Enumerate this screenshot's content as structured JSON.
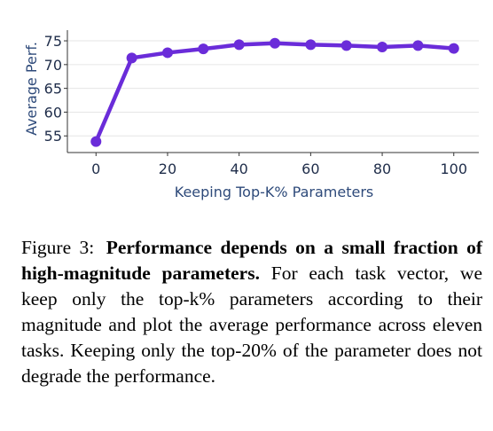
{
  "chart_data": {
    "type": "line",
    "x": [
      0,
      10,
      20,
      30,
      40,
      50,
      60,
      70,
      80,
      90,
      100
    ],
    "series": [
      {
        "values": [
          53.8,
          71.4,
          72.5,
          73.3,
          74.2,
          74.5,
          74.2,
          74.0,
          73.7,
          74.0,
          73.4
        ]
      }
    ],
    "xlabel": "Keeping Top-K% Parameters",
    "ylabel": "Average Perf.",
    "xticks": [
      0,
      20,
      40,
      60,
      80,
      100
    ],
    "yticks": [
      55,
      60,
      65,
      70,
      75
    ],
    "xlim": [
      -8,
      107
    ],
    "ylim": [
      51.5,
      76.5
    ],
    "grid": true,
    "line_color": "#6a2cd9",
    "marker_color": "#6a2cd9"
  },
  "caption": {
    "label": "Figure 3:",
    "bold": "Performance depends on a small fraction of high-magnitude parameters.",
    "text": "For each task vector, we keep only the top-k% parameters according to their magnitude and plot the average performance across eleven tasks. Keeping only the top-20% of the parameter does not degrade the performance."
  }
}
